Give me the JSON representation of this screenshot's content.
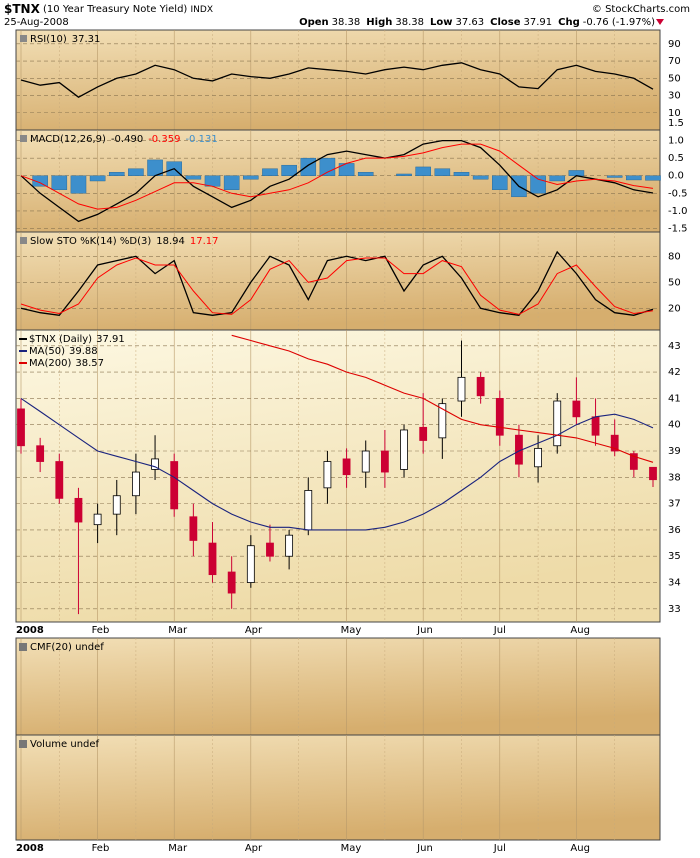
{
  "header": {
    "symbol": "$TNX",
    "name": "(10 Year Treasury Note Yield)",
    "exchange": "INDX",
    "date": "25-Aug-2008",
    "brand": "© StockCharts.com",
    "quote": [
      {
        "label": "Open",
        "value": "38.38"
      },
      {
        "label": "High",
        "value": "38.38"
      },
      {
        "label": "Low",
        "value": "37.63"
      },
      {
        "label": "Close",
        "value": "37.91"
      },
      {
        "label": "Chg",
        "value": "-0.76 (-1.97%)"
      }
    ]
  },
  "x_axis": {
    "categories": [
      "2008",
      null,
      null,
      null,
      "Feb",
      null,
      null,
      null,
      "Mar",
      null,
      null,
      null,
      "Apr",
      null,
      null,
      null,
      null,
      "May",
      null,
      null,
      null,
      "Jun",
      null,
      null,
      null,
      "Jul",
      null,
      null,
      null,
      "Aug",
      null,
      null,
      null,
      null
    ]
  },
  "chart_data": [
    {
      "type": "line",
      "title": "RSI(10)",
      "ylim": [
        -10,
        106
      ],
      "yticks": [
        90,
        70,
        50,
        30,
        10
      ],
      "grid": true,
      "series": [
        {
          "color": "#000000",
          "legend_value": "37.31",
          "values": [
            48,
            42,
            45,
            28,
            40,
            50,
            55,
            65,
            60,
            50,
            47,
            55,
            52,
            50,
            55,
            62,
            60,
            58,
            55,
            60,
            63,
            60,
            65,
            68,
            60,
            55,
            40,
            38,
            60,
            65,
            58,
            55,
            50,
            37.31
          ]
        }
      ]
    },
    {
      "type": "line",
      "title": "MACD(12,26,9)",
      "ylim": [
        -1.6,
        1.3
      ],
      "yticks": [
        1.5,
        {
          "value": 1,
          "label": "1.0"
        },
        0.5,
        {
          "value": 0,
          "label": "0.0"
        },
        -0.5,
        {
          "value": -1,
          "label": "-1.0"
        },
        -1.5
      ],
      "grid": true,
      "series": [
        {
          "color": "#000000",
          "legend_value": "-0.490",
          "values": [
            0.0,
            -0.5,
            -0.9,
            -1.3,
            -1.1,
            -0.8,
            -0.5,
            0.0,
            0.2,
            -0.3,
            -0.6,
            -0.9,
            -0.7,
            -0.3,
            -0.1,
            0.3,
            0.6,
            0.7,
            0.6,
            0.5,
            0.6,
            0.9,
            1.0,
            1.0,
            0.8,
            0.3,
            -0.3,
            -0.6,
            -0.4,
            0.0,
            -0.1,
            -0.2,
            -0.4,
            -0.49
          ]
        },
        {
          "color": "#ff0000",
          "legend_value": "-0.359",
          "values": [
            0.0,
            -0.2,
            -0.5,
            -0.8,
            -0.95,
            -0.9,
            -0.7,
            -0.45,
            -0.2,
            -0.2,
            -0.3,
            -0.5,
            -0.6,
            -0.5,
            -0.4,
            -0.2,
            0.1,
            0.35,
            0.5,
            0.5,
            0.55,
            0.65,
            0.8,
            0.9,
            0.9,
            0.7,
            0.3,
            -0.1,
            -0.25,
            -0.15,
            -0.1,
            -0.15,
            -0.28,
            -0.359
          ]
        },
        {
          "color": "#3d8fcc",
          "style": "histogram",
          "legend_value": "-0.131",
          "values": [
            0,
            -0.3,
            -0.4,
            -0.5,
            -0.15,
            0.1,
            0.2,
            0.45,
            0.4,
            -0.1,
            -0.3,
            -0.4,
            -0.1,
            0.2,
            0.3,
            0.5,
            0.5,
            0.35,
            0.1,
            0,
            0.05,
            0.25,
            0.2,
            0.1,
            -0.1,
            -0.4,
            -0.6,
            -0.5,
            -0.15,
            0.15,
            0,
            -0.05,
            -0.12,
            -0.131
          ]
        }
      ]
    },
    {
      "type": "line",
      "title": "Slow STO %K(14) %D(3)",
      "ylim": [
        -5,
        108
      ],
      "yticks": [
        80,
        50,
        20
      ],
      "grid": true,
      "series": [
        {
          "color": "#000000",
          "legend_value": "18.94",
          "values": [
            20,
            15,
            12,
            40,
            70,
            75,
            80,
            60,
            75,
            15,
            12,
            15,
            50,
            80,
            70,
            30,
            75,
            80,
            75,
            80,
            40,
            70,
            80,
            55,
            20,
            15,
            12,
            40,
            85,
            60,
            30,
            15,
            12,
            18.94
          ]
        },
        {
          "color": "#ff0000",
          "legend_value": "17.17",
          "values": [
            25,
            18,
            14,
            25,
            55,
            70,
            78,
            70,
            70,
            40,
            15,
            13,
            30,
            65,
            75,
            50,
            55,
            75,
            78,
            78,
            60,
            60,
            75,
            68,
            35,
            18,
            13,
            25,
            60,
            70,
            45,
            22,
            14,
            17.17
          ]
        }
      ]
    },
    {
      "type": "candlestick",
      "ylim": [
        32.5,
        43.6
      ],
      "yticks": [
        43,
        42,
        41,
        40,
        39,
        38,
        37,
        36,
        35,
        34,
        33
      ],
      "grid": true,
      "series": [
        {
          "name": "$TNX (Daily)",
          "color": "#000000",
          "down_color": "#cc0033",
          "legend_value": "37.91",
          "open": [
            40.6,
            39.2,
            38.6,
            37.2,
            36.2,
            36.6,
            37.3,
            38.3,
            38.6,
            36.5,
            35.5,
            34.4,
            34.0,
            35.5,
            35.0,
            36.0,
            37.6,
            38.7,
            38.2,
            39.0,
            38.3,
            39.9,
            39.5,
            40.9,
            41.8,
            41.0,
            39.6,
            38.4,
            39.2,
            40.9,
            40.3,
            39.6,
            38.9,
            38.38
          ],
          "high": [
            41.0,
            39.5,
            38.9,
            37.6,
            37.0,
            37.9,
            38.9,
            39.6,
            38.9,
            37.0,
            36.3,
            35.0,
            35.8,
            36.2,
            36.0,
            38.0,
            39.0,
            39.1,
            39.4,
            39.8,
            40.0,
            41.2,
            41.0,
            43.2,
            42.0,
            41.3,
            40.0,
            39.6,
            41.2,
            41.8,
            41.0,
            40.2,
            39.0,
            38.38
          ],
          "low": [
            38.9,
            38.2,
            37.0,
            32.8,
            35.5,
            35.8,
            36.6,
            37.9,
            36.5,
            35.0,
            34.0,
            33.0,
            33.8,
            34.8,
            34.5,
            35.8,
            37.0,
            37.6,
            37.6,
            37.6,
            38.0,
            38.9,
            38.7,
            40.3,
            40.8,
            39.2,
            38.0,
            37.8,
            38.9,
            40.0,
            39.2,
            38.8,
            38.0,
            37.63
          ],
          "close": [
            39.2,
            38.6,
            37.2,
            36.3,
            36.6,
            37.3,
            38.2,
            38.7,
            36.8,
            35.6,
            34.3,
            33.6,
            35.4,
            35.0,
            35.8,
            37.5,
            38.6,
            38.1,
            39.0,
            38.2,
            39.8,
            39.4,
            40.8,
            41.8,
            41.1,
            39.6,
            38.5,
            39.1,
            40.9,
            40.3,
            39.6,
            39.0,
            38.3,
            37.91
          ]
        },
        {
          "name": "MA(50)",
          "color": "#1a237e",
          "legend_value": "39.88",
          "values": [
            41.0,
            40.5,
            40.0,
            39.5,
            39.0,
            38.8,
            38.6,
            38.4,
            38.0,
            37.5,
            37.0,
            36.6,
            36.3,
            36.1,
            36.1,
            36.0,
            36.0,
            36.0,
            36.0,
            36.1,
            36.3,
            36.6,
            37.0,
            37.5,
            38.0,
            38.6,
            39.0,
            39.3,
            39.6,
            40.0,
            40.3,
            40.4,
            40.2,
            39.88
          ]
        },
        {
          "name": "MA(200)",
          "color": "#dd0000",
          "legend_value": "38.57",
          "values": [
            null,
            null,
            null,
            null,
            null,
            null,
            null,
            null,
            null,
            null,
            null,
            43.4,
            43.2,
            43.0,
            42.8,
            42.5,
            42.3,
            42.0,
            41.8,
            41.5,
            41.2,
            41.0,
            40.6,
            40.2,
            40.0,
            39.9,
            39.8,
            39.7,
            39.6,
            39.5,
            39.3,
            39.1,
            38.8,
            38.57
          ]
        }
      ]
    },
    {
      "type": "empty",
      "title": "CMF(20) undef"
    },
    {
      "type": "empty",
      "title": "Volume undef"
    }
  ]
}
